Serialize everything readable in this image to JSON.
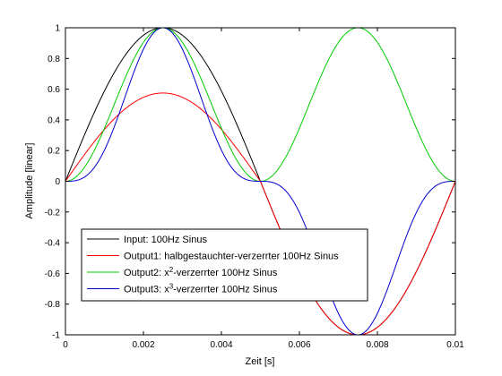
{
  "chart_data": {
    "type": "line",
    "title": "",
    "xlabel": "Zeit [s]",
    "ylabel": "Amplitude [linear]",
    "xlim": [
      0,
      0.01
    ],
    "ylim": [
      -1,
      1
    ],
    "xticks": [
      "0",
      "0.002",
      "0.004",
      "0.006",
      "0.008",
      "0.01"
    ],
    "xtick_values": [
      0,
      0.002,
      0.004,
      0.006,
      0.008,
      0.01
    ],
    "yticks": [
      "-1",
      "-0.8",
      "-0.6",
      "-0.4",
      "-0.2",
      "0",
      "0.2",
      "0.4",
      "0.6",
      "0.8",
      "1"
    ],
    "ytick_values": [
      -1,
      -0.8,
      -0.6,
      -0.4,
      -0.2,
      0,
      0.2,
      0.4,
      0.6,
      0.8,
      1
    ],
    "grid": false,
    "legend_position": "lower-left",
    "frequency_hz": 100,
    "series": [
      {
        "name_parts": [
          "Input: 100Hz Sinus"
        ],
        "color": "#000000",
        "function": "sin",
        "description": "y = sin(2*pi*100*t), 0 <= t <= 0.01"
      },
      {
        "name_parts": [
          "Output1: halbgestauchter-verzerrter 100Hz Sinus"
        ],
        "color": "#ff0000",
        "function": "half_compressed",
        "description": "y = 0.575*sin(2*pi*100*t) for sin>0, y = sin(2*pi*100*t) for sin<=0",
        "peak_positive": 0.575,
        "peak_negative": -1
      },
      {
        "name_parts": [
          "Output2: x",
          "2",
          "-verzerrter 100Hz Sinus"
        ],
        "color": "#00cc00",
        "function": "square",
        "description": "y = sin(2*pi*100*t)^2"
      },
      {
        "name_parts": [
          "Output3: x",
          "3",
          "-verzerrter 100Hz Sinus"
        ],
        "color": "#0000cc",
        "function": "cube",
        "description": "y = sin(2*pi*100*t)^3"
      }
    ]
  }
}
